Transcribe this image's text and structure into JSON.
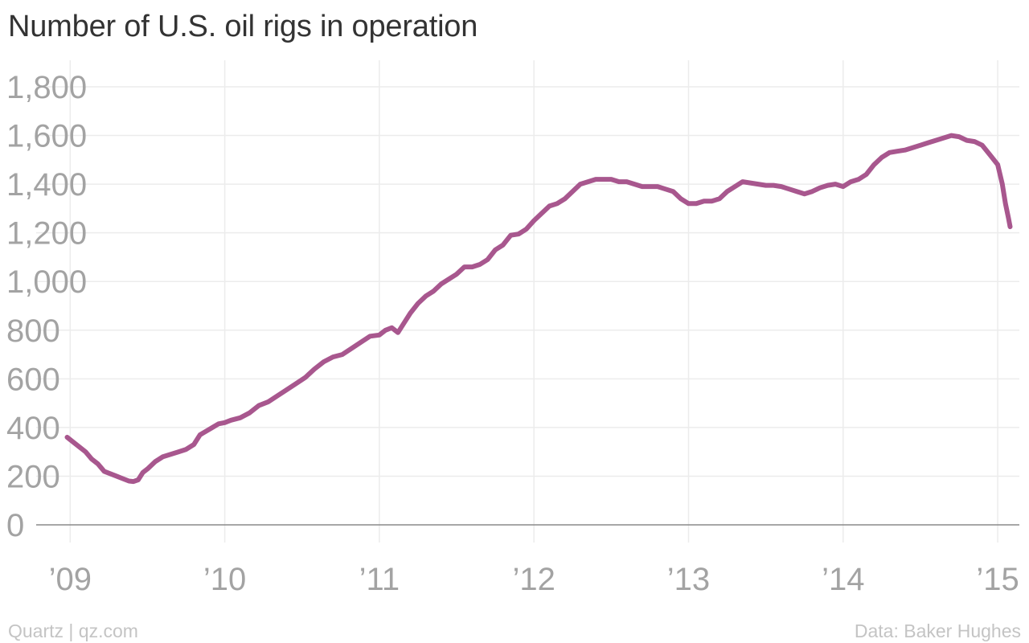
{
  "chart_data": {
    "type": "line",
    "title": "Number of U.S. oil rigs in operation",
    "xlabel": "",
    "ylabel": "",
    "ylim": [
      0,
      1800
    ],
    "yticks": [
      0,
      200,
      400,
      600,
      800,
      1000,
      1200,
      1400,
      1600,
      1800
    ],
    "ytick_labels": [
      "0",
      "200",
      "400",
      "600",
      "800",
      "1,000",
      "1,200",
      "1,400",
      "1,600",
      "1,800"
    ],
    "xlim": [
      2008.78,
      2015.14
    ],
    "xticks": [
      2009,
      2010,
      2011,
      2012,
      2013,
      2014,
      2015
    ],
    "xtick_labels": [
      "’09",
      "’10",
      "’11",
      "’12",
      "’13",
      "’14",
      "’15"
    ],
    "grid": true,
    "line_color": "#a8578e",
    "series": [
      {
        "x": [
          2008.98,
          2009.02,
          2009.06,
          2009.1,
          2009.14,
          2009.18,
          2009.22,
          2009.26,
          2009.3,
          2009.34,
          2009.38,
          2009.41,
          2009.44,
          2009.47,
          2009.5,
          2009.55,
          2009.6,
          2009.65,
          2009.7,
          2009.75,
          2009.8,
          2009.84,
          2009.88,
          2009.92,
          2009.96,
          2010.0,
          2010.04,
          2010.1,
          2010.16,
          2010.22,
          2010.28,
          2010.34,
          2010.4,
          2010.46,
          2010.52,
          2010.58,
          2010.64,
          2010.7,
          2010.76,
          2010.82,
          2010.88,
          2010.94,
          2011.0,
          2011.04,
          2011.08,
          2011.12,
          2011.16,
          2011.2,
          2011.25,
          2011.3,
          2011.35,
          2011.4,
          2011.45,
          2011.5,
          2011.55,
          2011.6,
          2011.65,
          2011.7,
          2011.75,
          2011.8,
          2011.85,
          2011.9,
          2011.95,
          2012.0,
          2012.05,
          2012.1,
          2012.15,
          2012.2,
          2012.25,
          2012.3,
          2012.35,
          2012.4,
          2012.45,
          2012.5,
          2012.55,
          2012.6,
          2012.65,
          2012.7,
          2012.75,
          2012.8,
          2012.85,
          2012.9,
          2012.95,
          2013.0,
          2013.05,
          2013.1,
          2013.15,
          2013.2,
          2013.25,
          2013.3,
          2013.35,
          2013.4,
          2013.45,
          2013.5,
          2013.55,
          2013.6,
          2013.65,
          2013.7,
          2013.75,
          2013.8,
          2013.85,
          2013.9,
          2013.95,
          2014.0,
          2014.05,
          2014.1,
          2014.15,
          2014.2,
          2014.25,
          2014.3,
          2014.35,
          2014.4,
          2014.45,
          2014.5,
          2014.55,
          2014.6,
          2014.65,
          2014.7,
          2014.75,
          2014.8,
          2014.85,
          2014.9,
          2014.95,
          2015.0,
          2015.03,
          2015.05,
          2015.07,
          2015.08
        ],
        "values": [
          360,
          340,
          320,
          300,
          270,
          250,
          220,
          210,
          200,
          190,
          180,
          178,
          185,
          215,
          230,
          260,
          280,
          290,
          300,
          310,
          330,
          370,
          385,
          400,
          415,
          420,
          430,
          440,
          460,
          490,
          505,
          530,
          555,
          580,
          605,
          640,
          670,
          690,
          700,
          725,
          750,
          775,
          780,
          800,
          810,
          790,
          830,
          870,
          910,
          940,
          960,
          990,
          1010,
          1030,
          1060,
          1060,
          1070,
          1090,
          1130,
          1150,
          1190,
          1195,
          1215,
          1250,
          1280,
          1310,
          1320,
          1340,
          1370,
          1400,
          1410,
          1420,
          1420,
          1420,
          1410,
          1410,
          1400,
          1390,
          1390,
          1390,
          1380,
          1370,
          1340,
          1320,
          1320,
          1330,
          1330,
          1340,
          1370,
          1390,
          1410,
          1405,
          1400,
          1395,
          1395,
          1390,
          1380,
          1370,
          1360,
          1370,
          1385,
          1395,
          1400,
          1390,
          1410,
          1420,
          1440,
          1480,
          1510,
          1530,
          1535,
          1540,
          1550,
          1560,
          1570,
          1580,
          1590,
          1600,
          1595,
          1580,
          1575,
          1560,
          1520,
          1480,
          1400,
          1320,
          1260,
          1225
        ]
      }
    ]
  },
  "footer": {
    "source_left": "Quartz | qz.com",
    "source_right": "Data: Baker Hughes"
  }
}
